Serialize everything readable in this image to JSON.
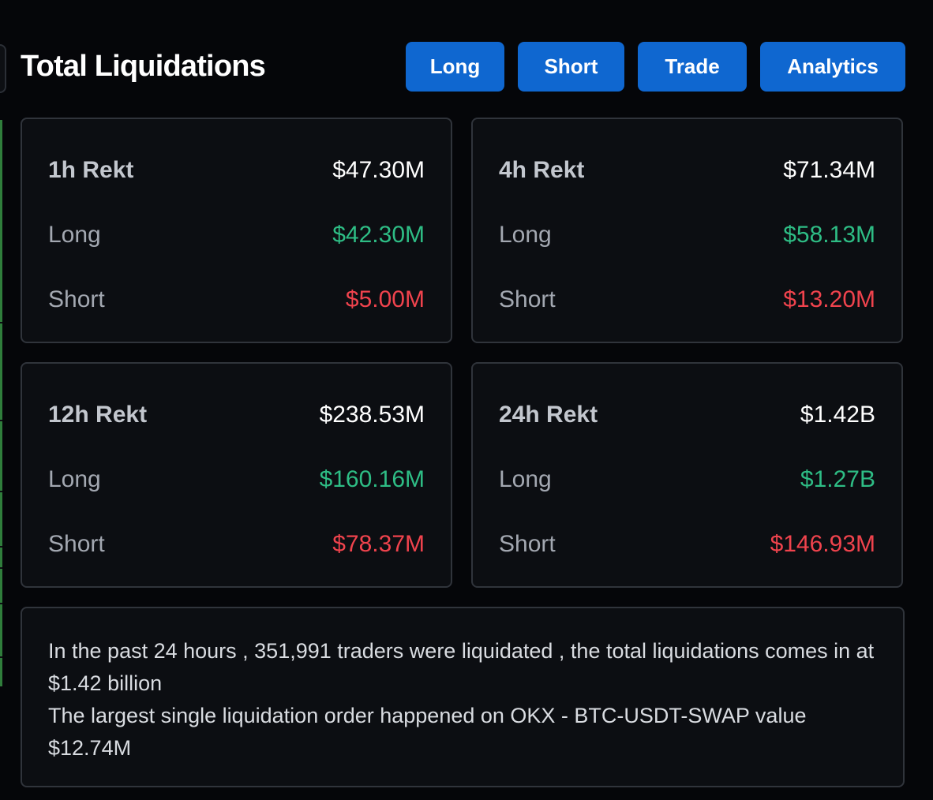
{
  "header": {
    "title": "Total Liquidations",
    "buttons": {
      "long": "Long",
      "short": "Short",
      "trade": "Trade",
      "analytics": "Analytics"
    }
  },
  "colors": {
    "button_bg": "#0f67d0",
    "long_value": "#2ebd85",
    "short_value": "#f0434d",
    "background": "#050609",
    "card_bg": "#0c0e12"
  },
  "cards": {
    "h1": {
      "label": "1h Rekt",
      "total": "$47.30M",
      "long_label": "Long",
      "long": "$42.30M",
      "short_label": "Short",
      "short": "$5.00M"
    },
    "h4": {
      "label": "4h Rekt",
      "total": "$71.34M",
      "long_label": "Long",
      "long": "$58.13M",
      "short_label": "Short",
      "short": "$13.20M"
    },
    "h12": {
      "label": "12h Rekt",
      "total": "$238.53M",
      "long_label": "Long",
      "long": "$160.16M",
      "short_label": "Short",
      "short": "$78.37M"
    },
    "h24": {
      "label": "24h Rekt",
      "total": "$1.42B",
      "long_label": "Long",
      "long": "$1.27B",
      "short_label": "Short",
      "short": "$146.93M"
    }
  },
  "summary": {
    "line1": "In the past 24 hours , 351,991 traders were liquidated , the total liquidations comes in at $1.42 billion",
    "line2": "The largest single liquidation order happened on OKX - BTC-USDT-SWAP value $12.74M"
  }
}
